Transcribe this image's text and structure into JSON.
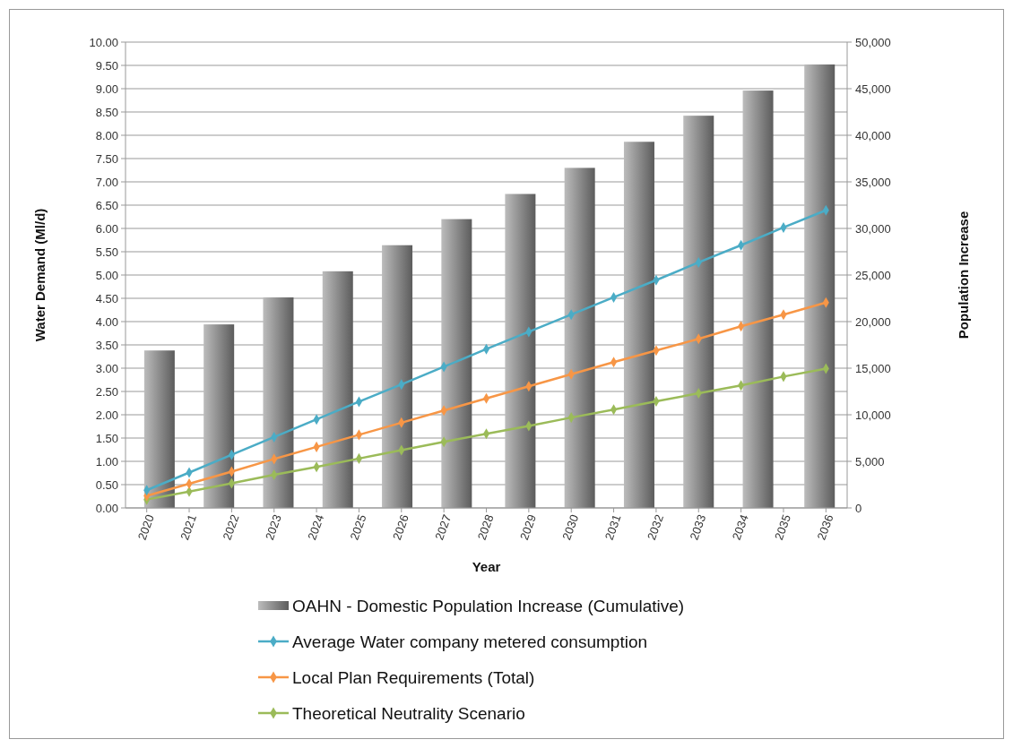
{
  "chart_data": {
    "type": "line",
    "xlabel": "Year",
    "ylabel": "Water Demand (Ml/d)",
    "y2label": "Population Increase",
    "x": [
      2020,
      2021,
      2022,
      2023,
      2024,
      2025,
      2026,
      2027,
      2028,
      2029,
      2030,
      2031,
      2032,
      2033,
      2034,
      2035,
      2036
    ],
    "xlim": [
      2019.5,
      2036.5
    ],
    "xticks": [
      2020,
      2021,
      2022,
      2023,
      2024,
      2025,
      2026,
      2027,
      2028,
      2029,
      2030,
      2031,
      2032,
      2033,
      2034,
      2035,
      2036
    ],
    "ylim": [
      0,
      10
    ],
    "yticks": [
      {
        "value": 0,
        "label": "0.00"
      },
      {
        "value": 0.5,
        "label": "0.50"
      },
      {
        "value": 1,
        "label": "1.00"
      },
      {
        "value": 1.5,
        "label": "1.50"
      },
      {
        "value": 2,
        "label": "2.00"
      },
      {
        "value": 2.5,
        "label": "2.50"
      },
      {
        "value": 3,
        "label": "3.00"
      },
      {
        "value": 3.5,
        "label": "3.50"
      },
      {
        "value": 4,
        "label": "4.00"
      },
      {
        "value": 4.5,
        "label": "4.50"
      },
      {
        "value": 5,
        "label": "5.00"
      },
      {
        "value": 5.5,
        "label": "5.50"
      },
      {
        "value": 6,
        "label": "6.00"
      },
      {
        "value": 6.5,
        "label": "6.50"
      },
      {
        "value": 7,
        "label": "7.00"
      },
      {
        "value": 7.5,
        "label": "7.50"
      },
      {
        "value": 8,
        "label": "8.00"
      },
      {
        "value": 8.5,
        "label": "8.50"
      },
      {
        "value": 9,
        "label": "9.00"
      },
      {
        "value": 9.5,
        "label": "9.50"
      },
      {
        "value": 10,
        "label": "10.00"
      }
    ],
    "y2lim": [
      0,
      50000
    ],
    "y2ticks": [
      0,
      {
        "value": 5000,
        "label": "5,000"
      },
      {
        "value": 10000,
        "label": "10,000"
      },
      {
        "value": 15000,
        "label": "15,000"
      },
      {
        "value": 20000,
        "label": "20,000"
      },
      {
        "value": 25000,
        "label": "25,000"
      },
      {
        "value": 30000,
        "label": "30,000"
      },
      {
        "value": 35000,
        "label": "35,000"
      },
      {
        "value": 40000,
        "label": "40,000"
      },
      {
        "value": 45000,
        "label": "45,000"
      },
      {
        "value": 50000,
        "label": "50,000"
      }
    ],
    "grid": "y",
    "legend": "bottom",
    "marker": "diamond",
    "series": [
      {
        "name": "OAHN - Domestic Population Increase (Cumulative)",
        "type": "bar",
        "axis": "y2",
        "color": "#7f7f7f",
        "x": [
          2020.3,
          2021.7,
          2023.1,
          2024.5,
          2025.9,
          2027.3,
          2028.8,
          2030.2,
          2031.6,
          2033.0,
          2034.4,
          2035.85
        ],
        "values": [
          16900,
          19700,
          22600,
          25400,
          28200,
          31000,
          33700,
          36500,
          39300,
          42100,
          44800,
          47600
        ]
      },
      {
        "name": "Average Water company metered consumption",
        "color": "#4bacc6",
        "values": [
          0.38,
          0.76,
          1.14,
          1.52,
          1.9,
          2.28,
          2.65,
          3.03,
          3.41,
          3.78,
          4.15,
          4.52,
          4.89,
          5.27,
          5.64,
          6.02,
          6.39
        ]
      },
      {
        "name": "Local Plan Requirements (Total)",
        "color": "#f79646",
        "values": [
          0.26,
          0.52,
          0.78,
          1.05,
          1.31,
          1.57,
          1.83,
          2.09,
          2.35,
          2.61,
          2.87,
          3.13,
          3.38,
          3.63,
          3.9,
          4.15,
          4.41
        ]
      },
      {
        "name": "Theoretical Neutrality Scenario",
        "color": "#9bbb59",
        "values": [
          0.18,
          0.35,
          0.53,
          0.71,
          0.88,
          1.06,
          1.24,
          1.42,
          1.59,
          1.76,
          1.94,
          2.11,
          2.29,
          2.46,
          2.63,
          2.82,
          2.99
        ]
      }
    ]
  }
}
